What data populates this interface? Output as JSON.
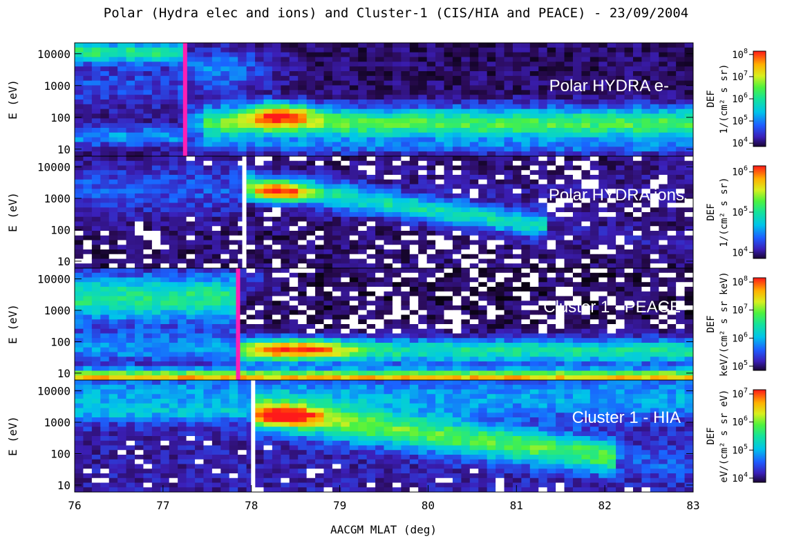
{
  "chart_data": {
    "type": "heatmap",
    "title": "Polar (Hydra elec and ions) and Cluster-1 (CIS/HIA and PEACE) - 23/09/2004",
    "xlabel": "AACGM MLAT (deg)",
    "xlim": [
      76,
      83
    ],
    "x_ticks": [
      "76",
      "77",
      "78",
      "79",
      "80",
      "81",
      "82",
      "83"
    ],
    "colormap": [
      "#000000",
      "#2a0a55",
      "#3b1fb8",
      "#1a64ff",
      "#00c8e8",
      "#17e39a",
      "#4ef23e",
      "#d6ef1e",
      "#ffb000",
      "#ff5a00",
      "#ff1a1a"
    ],
    "panels": [
      {
        "name": "Polar HYDRA e-",
        "ylabel": "E (eV)",
        "y_ticks": [
          "10",
          "100",
          "1000",
          "10000"
        ],
        "ylim": [
          6,
          22000
        ],
        "log_y": true,
        "colorbar": {
          "title": "DEF",
          "unit_label": "1/(cm² s sr)",
          "tick_exp": [
            4,
            5,
            6,
            7,
            8
          ]
        },
        "marker": {
          "x": 77.25,
          "color": "#ff1fb4"
        },
        "features": [
          {
            "label": "High-energy band before boundary",
            "x_range": [
              76,
              77.3
            ],
            "energy_eV": 10000,
            "log_def": 5.8
          },
          {
            "label": "Peak flux",
            "x_range": [
              78.0,
              78.6
            ],
            "energy_eV": 130,
            "log_def": 7.8
          },
          {
            "label": "Low-energy band",
            "x_range": [
              78.6,
              83
            ],
            "energy_eV": 70,
            "log_def": 6.4
          }
        ]
      },
      {
        "name": "Polar HYDRA ions",
        "ylabel": "E (eV)",
        "y_ticks": [
          "10",
          "100",
          "1000",
          "10000"
        ],
        "ylim": [
          6,
          22000
        ],
        "log_y": true,
        "colorbar": {
          "title": "DEF",
          "unit_label": "1/(cm² s sr)",
          "tick_exp": [
            4,
            5,
            6
          ]
        },
        "marker": {
          "x": 77.92,
          "color": "#ffffff"
        },
        "features": [
          {
            "label": "Dispersed ion peak",
            "x_range": [
              78.0,
              78.6
            ],
            "energy_eV": 1500,
            "log_def": 6.5
          },
          {
            "label": "Dispersion tail",
            "x_range": [
              78.6,
              81.2
            ],
            "energy_eV": 500,
            "log_def": 5.0
          }
        ]
      },
      {
        "name": "Cluster 1 - PEACE",
        "ylabel": "E (eV)",
        "y_ticks": [
          "10",
          "100",
          "1000",
          "10000"
        ],
        "ylim": [
          6,
          22000
        ],
        "log_y": true,
        "colorbar": {
          "title": "DEF",
          "unit_label": "keV/(cm² s sr keV)",
          "tick_exp": [
            5,
            6,
            7,
            8
          ]
        },
        "marker": {
          "x": 77.85,
          "color": "#ff1fb4"
        },
        "features": [
          {
            "label": "Magnetosheath-like band",
            "x_range": [
              76,
              77.85
            ],
            "energy_eV": 3000,
            "log_def": 6.6
          },
          {
            "label": "Peak flux",
            "x_range": [
              78.0,
              79.2
            ],
            "energy_eV": 50,
            "log_def": 7.9
          },
          {
            "label": "Low-energy floor",
            "x_range": [
              76,
              83
            ],
            "energy_eV": 8,
            "log_def": 7.5
          }
        ]
      },
      {
        "name": "Cluster 1 - HIA",
        "ylabel": "E (eV)",
        "y_ticks": [
          "10",
          "100",
          "1000",
          "10000"
        ],
        "ylim": [
          6,
          22000
        ],
        "log_y": true,
        "colorbar": {
          "title": "DEF",
          "unit_label": "eV/(cm² s sr eV)",
          "tick_exp": [
            4,
            5,
            6,
            7
          ]
        },
        "marker": {
          "x": 78.02,
          "color": "#ffffff"
        },
        "features": [
          {
            "label": "Dispersed ion peak",
            "x_range": [
              78.1,
              78.7
            ],
            "energy_eV": 1500,
            "log_def": 7.2
          },
          {
            "label": "Dispersion tail",
            "x_range": [
              78.7,
              82.1
            ],
            "energy_eV": 300,
            "log_def": 5.6
          }
        ]
      }
    ]
  }
}
